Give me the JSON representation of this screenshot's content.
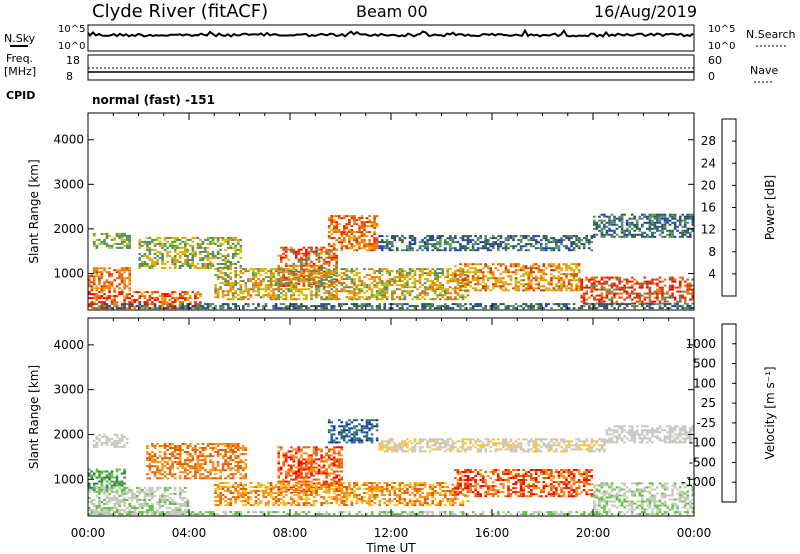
{
  "header": {
    "station": "Clyde River (fitACF)",
    "beam": "Beam 00",
    "date": "16/Aug/2019"
  },
  "noise_panel": {
    "left_label": "N.Sky",
    "right_label": "N.Search",
    "left_ticks": [
      "10^5",
      "10^0"
    ],
    "right_ticks": [
      "10^5",
      "10^0"
    ]
  },
  "freq_panel": {
    "left_label_1": "Freq.",
    "left_label_2": "[MHz]",
    "left_ticks": [
      "18",
      "8"
    ],
    "right_ticks": [
      "60",
      "0"
    ],
    "right_label": "Nave",
    "cpid_label": "CPID",
    "cpid_text": "normal (fast) -151"
  },
  "chart_data": [
    {
      "type": "heatmap",
      "quantity": "Power",
      "ylabel": "Slant Range [km]",
      "colorbar_label": "Power [dB]",
      "colorbar_ticks": [
        28,
        24,
        20,
        16,
        12,
        8,
        4
      ],
      "ylim": [
        180,
        4600
      ],
      "yticks": [
        1000,
        2000,
        3000,
        4000
      ],
      "x": [
        "00:00",
        "04:00",
        "08:00",
        "12:00",
        "16:00",
        "20:00",
        "00:00"
      ],
      "xlabel": "Time UT",
      "colors": [
        "#0000ff",
        "#2040a8",
        "#306040",
        "#509060",
        "#c0c000",
        "#f0a000",
        "#f07000",
        "#e03000",
        "#ff0000"
      ]
    },
    {
      "type": "heatmap",
      "quantity": "Velocity",
      "ylabel": "Slant Range [km]",
      "colorbar_label": "Velocity [m s⁻¹]",
      "colorbar_ticks": [
        "1000",
        "500",
        "100",
        "25",
        "-25",
        "-100",
        "-500",
        "-1000"
      ],
      "ylim": [
        180,
        4600
      ],
      "yticks": [
        1000,
        2000,
        3000,
        4000
      ],
      "x": [
        "00:00",
        "04:00",
        "08:00",
        "12:00",
        "16:00",
        "20:00",
        "00:00"
      ],
      "xlabel": "Time UT",
      "colors": [
        "#1030a0",
        "#2060b0",
        "#308050",
        "#60c040",
        "#c8c8c0",
        "#ffc020",
        "#ff9010",
        "#e06000",
        "#ff0000"
      ]
    }
  ],
  "colors": {
    "frame": "#000000",
    "background": "#ffffff"
  }
}
